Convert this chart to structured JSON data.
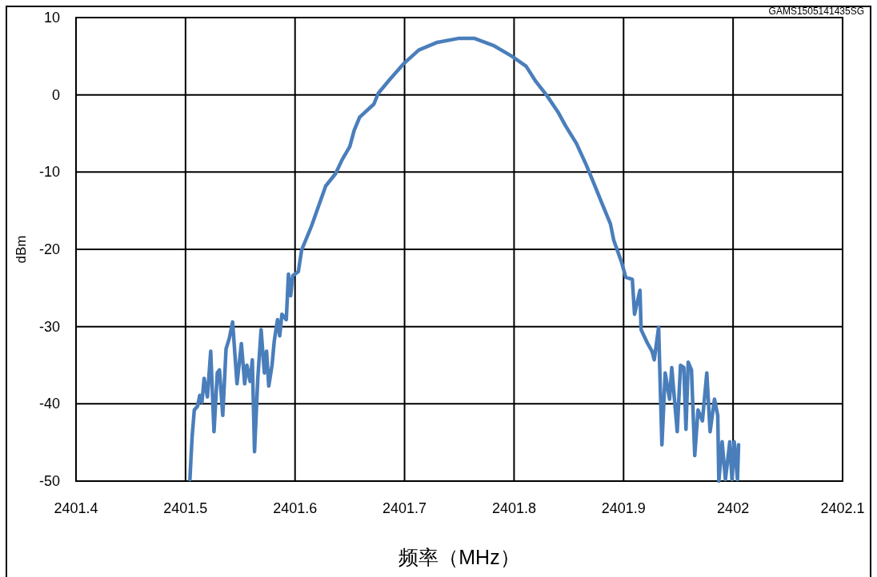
{
  "chart_data": {
    "type": "line",
    "xlabel": "频率（MHz）",
    "ylabel": "dBm",
    "annotations": [
      "GAMS1505141435SG"
    ],
    "xlim": [
      2401.4,
      2402.1
    ],
    "xticks": [
      2401.4,
      2401.5,
      2401.6,
      2401.7,
      2401.8,
      2401.9,
      2402,
      2402.1
    ],
    "ylim": [
      -50,
      10
    ],
    "yticks": [
      -50,
      -40,
      -30,
      -20,
      -10,
      0,
      10
    ],
    "grid": true,
    "marker": "none",
    "line_style": "solid",
    "series": [
      {
        "color": "#4a7ebb",
        "x": [
          2401.504,
          2401.505,
          2401.506,
          2401.508,
          2401.511,
          2401.513,
          2401.515,
          2401.517,
          2401.52,
          2401.523,
          2401.526,
          2401.529,
          2401.531,
          2401.534,
          2401.537,
          2401.54,
          2401.543,
          2401.547,
          2401.551,
          2401.554,
          2401.556,
          2401.559,
          2401.561,
          2401.563,
          2401.566,
          2401.569,
          2401.572,
          2401.574,
          2401.576,
          2401.579,
          2401.581,
          2401.584,
          2401.586,
          2401.588,
          2401.592,
          2401.594,
          2401.596,
          2401.598,
          2401.603,
          2401.606,
          2401.615,
          2401.621,
          2401.628,
          2401.637,
          2401.643,
          2401.65,
          2401.654,
          2401.659,
          2401.672,
          2401.676,
          2401.686,
          2401.699,
          2401.713,
          2401.73,
          2401.749,
          2401.764,
          2401.781,
          2401.798,
          2401.811,
          2401.82,
          2401.83,
          2401.84,
          2401.847,
          2401.857,
          2401.866,
          2401.873,
          2401.881,
          2401.888,
          2401.891,
          2401.898,
          2401.902,
          2401.908,
          2401.91,
          2401.915,
          2401.916,
          2401.922,
          2401.926,
          2401.928,
          2401.932,
          2401.935,
          2401.938,
          2401.942,
          2401.944,
          2401.949,
          2401.952,
          2401.955,
          2401.957,
          2401.959,
          2401.962,
          2401.965,
          2401.968,
          2401.972,
          2401.976,
          2401.979,
          2401.983,
          2401.986,
          2401.987,
          2401.99,
          2401.993,
          2401.997,
          2401.999,
          2402.001,
          2402.004,
          2402.005
        ],
        "values": [
          -49.8,
          -47.0,
          -44.3,
          -40.8,
          -40.3,
          -38.9,
          -39.8,
          -36.7,
          -39.1,
          -33.2,
          -43.6,
          -36.0,
          -35.6,
          -41.5,
          -32.9,
          -31.5,
          -29.4,
          -37.4,
          -32.2,
          -37.4,
          -35.0,
          -37.1,
          -34.3,
          -46.2,
          -36.7,
          -30.4,
          -36.0,
          -33.2,
          -37.7,
          -35.0,
          -31.9,
          -29.1,
          -31.2,
          -28.4,
          -29.1,
          -23.2,
          -26.0,
          -23.4,
          -22.9,
          -20.1,
          -17.0,
          -14.6,
          -11.8,
          -10.2,
          -8.4,
          -6.7,
          -4.6,
          -2.9,
          -1.2,
          0.2,
          1.9,
          4.0,
          5.8,
          6.8,
          7.3,
          7.3,
          6.4,
          5.0,
          3.7,
          1.7,
          -0.1,
          -2.2,
          -4.0,
          -6.3,
          -9.1,
          -11.5,
          -14.3,
          -16.7,
          -18.8,
          -21.6,
          -23.6,
          -23.9,
          -28.4,
          -25.3,
          -30.4,
          -32.2,
          -33.2,
          -34.3,
          -30.1,
          -45.3,
          -36.0,
          -39.4,
          -35.3,
          -43.6,
          -35.0,
          -35.3,
          -43.3,
          -34.6,
          -35.6,
          -46.7,
          -40.8,
          -42.2,
          -36.0,
          -43.6,
          -39.4,
          -41.5,
          -50,
          -44.9,
          -49.8,
          -44.9,
          -49.8,
          -44.9,
          -49.8,
          -45.3
        ]
      }
    ]
  }
}
